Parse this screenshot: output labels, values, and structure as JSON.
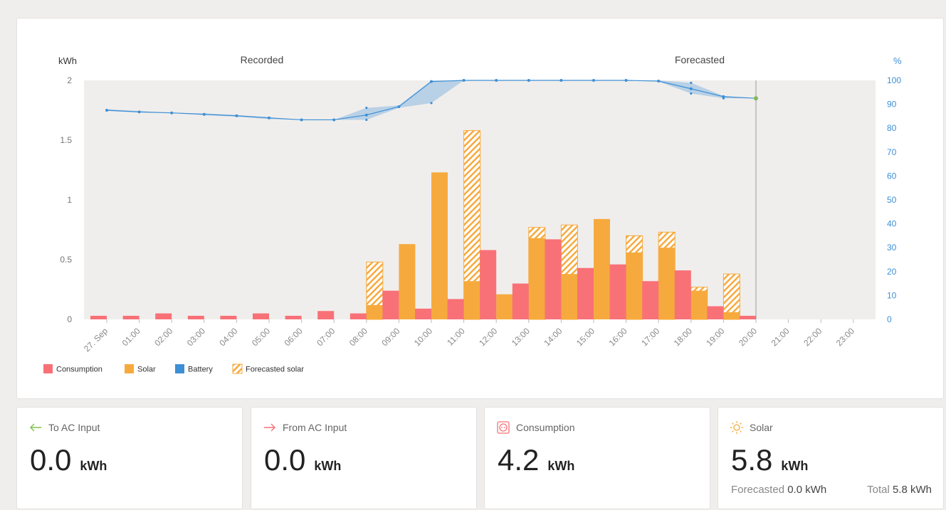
{
  "chart": {
    "left_unit": "kWh",
    "right_unit": "%",
    "recorded_label": "Recorded",
    "forecasted_label": "Forecasted"
  },
  "colors": {
    "consumption": "#f87177",
    "solar": "#f6aa3e",
    "battery": "#3d8fd6",
    "plot_bg": "#f0eeec",
    "now_marker": "#7ec04c"
  },
  "legend": [
    {
      "label": "Consumption",
      "key": "consumption"
    },
    {
      "label": "Solar",
      "key": "solar"
    },
    {
      "label": "Battery",
      "key": "battery"
    },
    {
      "label": "Forecasted solar",
      "key": "forecasted_solar"
    }
  ],
  "chart_data": {
    "type": "bar",
    "categories": [
      "27. Sep",
      "01:00",
      "02:00",
      "03:00",
      "04:00",
      "05:00",
      "06:00",
      "07:00",
      "08:00",
      "09:00",
      "10:00",
      "11:00",
      "12:00",
      "13:00",
      "14:00",
      "15:00",
      "16:00",
      "17:00",
      "18:00",
      "19:00",
      "20:00",
      "21:00",
      "22:00",
      "23:00"
    ],
    "left_axis": {
      "label": "kWh",
      "range": [
        0,
        2
      ],
      "ticks": [
        "0",
        "0.5",
        "1",
        "1.5",
        "2"
      ]
    },
    "right_axis": {
      "label": "%",
      "range": [
        0,
        100
      ],
      "ticks": [
        "0",
        "10",
        "20",
        "30",
        "40",
        "50",
        "60",
        "70",
        "80",
        "90",
        "100"
      ]
    },
    "series": [
      {
        "name": "Consumption",
        "type": "bar",
        "values": [
          0.03,
          0.03,
          0.05,
          0.03,
          0.03,
          0.05,
          0.03,
          0.07,
          0.05,
          0.24,
          0.09,
          0.17,
          0.58,
          0.3,
          0.67,
          0.43,
          0.46,
          0.32,
          0.41,
          0.11,
          0.03,
          0,
          0,
          0
        ]
      },
      {
        "name": "Solar",
        "type": "bar",
        "values": [
          0,
          0,
          0,
          0,
          0,
          0,
          0,
          0,
          0.12,
          0.63,
          1.23,
          0.32,
          0.21,
          0.68,
          0.38,
          0.84,
          0.56,
          0.6,
          0.24,
          0.06,
          0,
          0,
          0,
          0
        ]
      },
      {
        "name": "Forecasted solar",
        "type": "bar",
        "values": [
          0,
          0,
          0,
          0,
          0,
          0,
          0,
          0,
          0.48,
          0,
          0,
          1.58,
          0,
          0.77,
          0.79,
          0,
          0.7,
          0.73,
          0.27,
          0.38,
          0,
          0,
          0,
          0
        ]
      },
      {
        "name": "Battery",
        "type": "line",
        "axis": "right",
        "values": [
          87.5,
          86.8,
          86.4,
          85.8,
          85.2,
          84.3,
          83.5,
          83.5,
          85.5,
          89,
          99.5,
          100,
          100,
          100,
          100,
          100,
          100,
          99.7,
          96.5,
          93.2,
          92.5,
          null,
          null,
          null
        ]
      }
    ],
    "battery_band": {
      "high": [
        88,
        87.2,
        86.4,
        86.2,
        85.5,
        84.6,
        83.5,
        83.5,
        88.5,
        89.5,
        100,
        100,
        100,
        100,
        100,
        100,
        100,
        100,
        99,
        93.5,
        92.5
      ],
      "low": [
        87.2,
        86.6,
        86.4,
        85.4,
        84.8,
        83.8,
        83.5,
        83.5,
        83.5,
        88.5,
        90.5,
        100,
        100,
        100,
        100,
        100,
        100,
        99.5,
        94.5,
        92.5,
        92.5
      ]
    },
    "now_index": 20,
    "grid": false
  },
  "tiles": [
    {
      "title": "To AC Input",
      "value": "0.0",
      "unit": "kWh"
    },
    {
      "title": "From AC Input",
      "value": "0.0",
      "unit": "kWh"
    },
    {
      "title": "Consumption",
      "value": "4.2",
      "unit": "kWh"
    },
    {
      "title": "Solar",
      "value": "5.8",
      "unit": "kWh",
      "forecasted_label": "Forecasted",
      "forecasted_value": "0.0 kWh",
      "total_label": "Total",
      "total_value": "5.8 kWh"
    }
  ]
}
